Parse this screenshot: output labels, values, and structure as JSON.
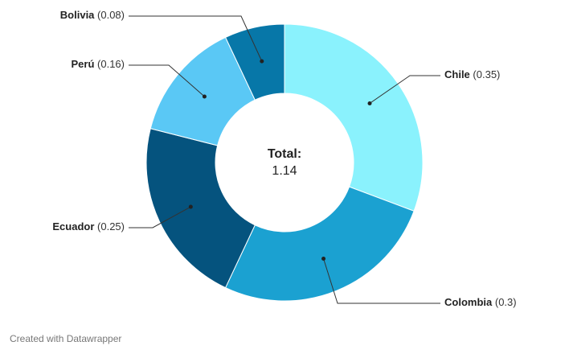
{
  "chart_data": {
    "type": "donut",
    "categories": [
      "Chile",
      "Colombia",
      "Ecuador",
      "Perú",
      "Bolivia"
    ],
    "values": [
      0.35,
      0.3,
      0.25,
      0.16,
      0.08
    ],
    "value_labels": [
      "(0.35)",
      "(0.3)",
      "(0.25)",
      "(0.16)",
      "(0.08)"
    ],
    "colors": [
      "#8af2fd",
      "#1ba1d1",
      "#05537e",
      "#5ac8f5",
      "#0777a8"
    ],
    "center_title": "Total:",
    "center_value": 1.14
  },
  "footer": "Created with Datawrapper"
}
